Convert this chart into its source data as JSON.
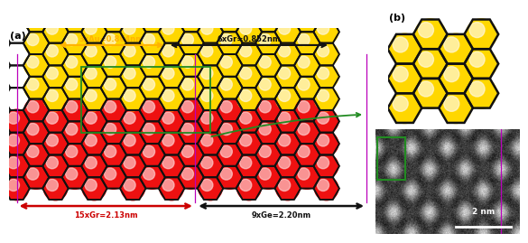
{
  "title_a": "(a)",
  "title_b": "(b)",
  "bg_color": "#ffffff",
  "hex_edge_color": "#111111",
  "hex_lw": 1.4,
  "au_color": "#FFD700",
  "au_highlight": "#FFF8DC",
  "ge_color": "#EE1111",
  "ge_highlight": "#FFCCCC",
  "label_3xAu": "3xAu=0.864nm",
  "label_6xGr": "6xGr=0.852nm",
  "label_15xGr": "15xGr=2.13nm",
  "label_9xGe": "9xGe=2.20nm",
  "scalebar_label": "2 nm",
  "au_arrow_color": "#FFB300",
  "black_arrow": "#111111",
  "red_arrow": "#CC0000",
  "magenta_color": "#BB00BB",
  "green_color": "#228B22",
  "panel_a_xlim": [
    -0.3,
    13.8
  ],
  "panel_a_ylim": [
    -1.0,
    6.2
  ],
  "hex_r": 0.5
}
